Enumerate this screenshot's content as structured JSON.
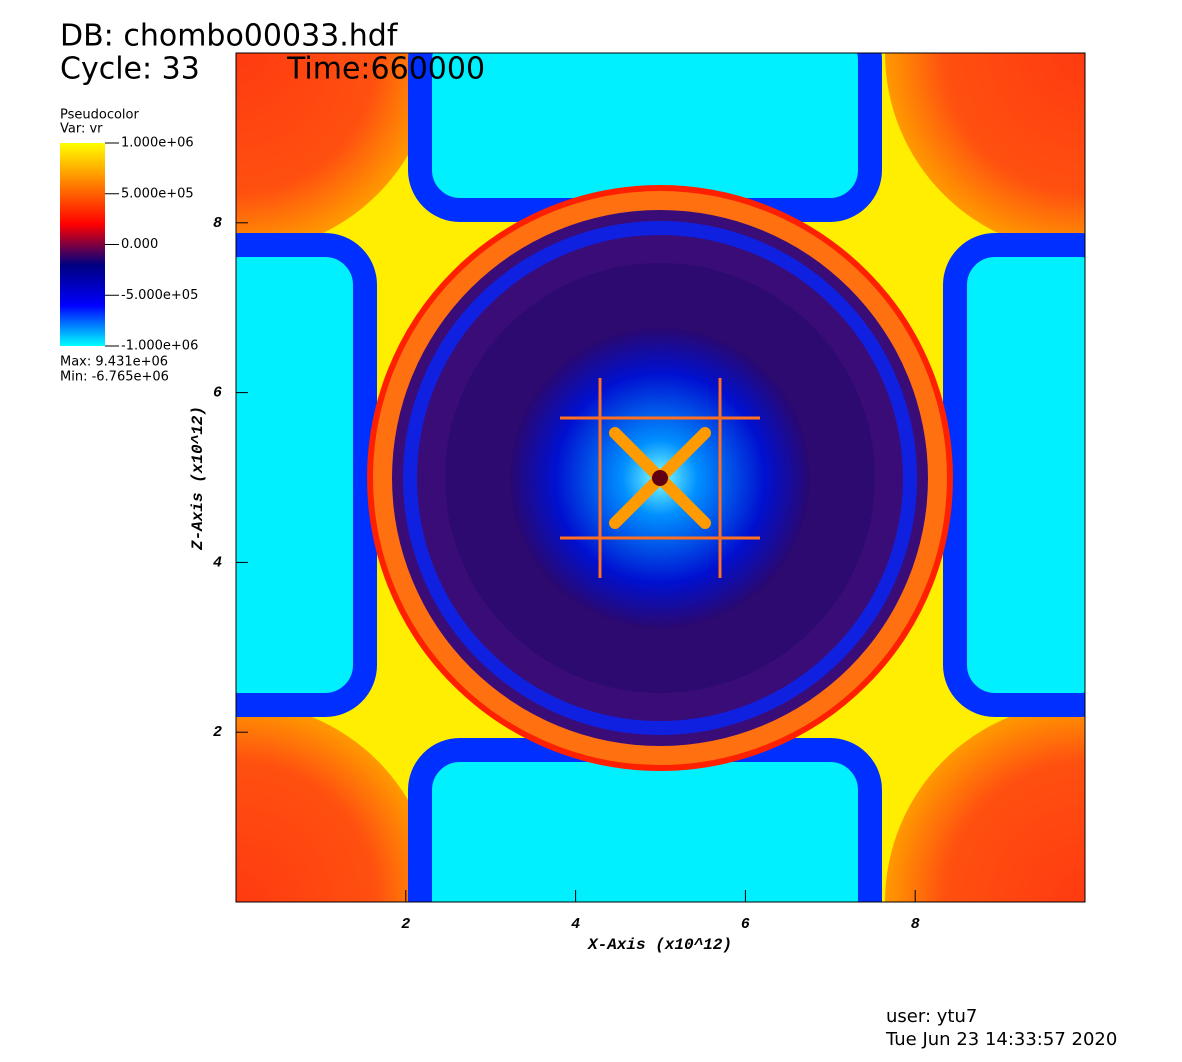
{
  "chart_data": {
    "type": "pseudocolor",
    "title": "DB: chombo00033.hdf",
    "cycle_label": "Cycle: 33",
    "time_label": "Time:660000",
    "xlabel": "X-Axis (x10^12)",
    "ylabel": "Z-Axis (x10^12)",
    "xlim": [
      0,
      10
    ],
    "ylim": [
      0,
      10
    ],
    "xticks": [
      2,
      4,
      6,
      8
    ],
    "yticks": [
      2,
      4,
      6,
      8
    ],
    "legend": {
      "title": "Pseudocolor",
      "variable": "Var: vr",
      "lim": [
        -1000000,
        1000000
      ],
      "colors": [
        "#00ffff",
        "#0000ff",
        "#000080",
        "#ff0000",
        "#ff8000",
        "#ffff00"
      ],
      "ticks": [
        {
          "value": 1000000,
          "label": "1.000e+06"
        },
        {
          "value": 500000,
          "label": "5.000e+05"
        },
        {
          "value": 0,
          "label": "0.000"
        },
        {
          "value": -500000,
          "label": "-5.000e+05"
        },
        {
          "value": -1000000,
          "label": "-1.000e+06"
        }
      ],
      "max_label": "Max: 9.431e+06",
      "min_label": "Min: -6.765e+06"
    },
    "user": "user: ytu7",
    "date": "Tue Jun 23 14:33:57 2020"
  }
}
